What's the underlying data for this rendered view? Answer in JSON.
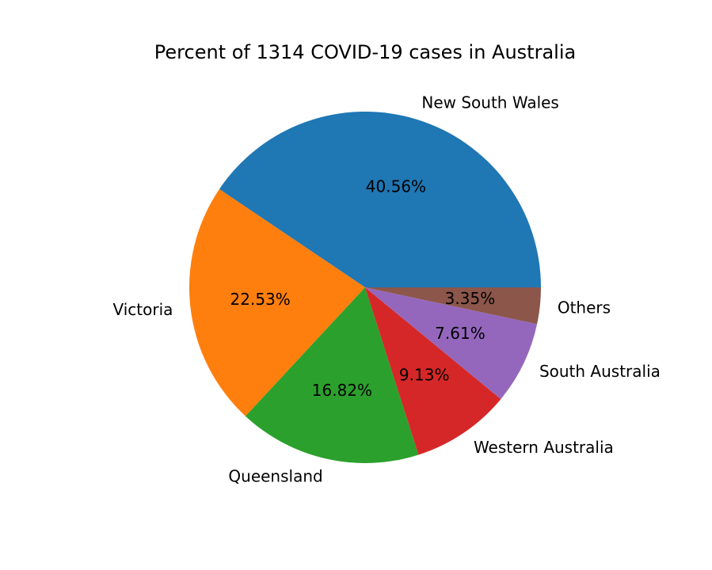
{
  "chart_data": {
    "type": "pie",
    "title": "Percent of 1314 COVID-19 cases in Australia",
    "start_angle_deg": 0,
    "direction": "counterclockwise",
    "legend": "none",
    "slices": [
      {
        "label": "New South Wales",
        "percent": 40.56,
        "percent_label": "40.56%",
        "color": "#1f77b4"
      },
      {
        "label": "Victoria",
        "percent": 22.53,
        "percent_label": "22.53%",
        "color": "#ff7f0e"
      },
      {
        "label": "Queensland",
        "percent": 16.82,
        "percent_label": "16.82%",
        "color": "#2ca02c"
      },
      {
        "label": "Western Australia",
        "percent": 9.13,
        "percent_label": "9.13%",
        "color": "#d62728"
      },
      {
        "label": "South Australia",
        "percent": 7.61,
        "percent_label": "7.61%",
        "color": "#9467bd"
      },
      {
        "label": "Others",
        "percent": 3.35,
        "percent_label": "3.35%",
        "color": "#8c564b"
      }
    ]
  }
}
